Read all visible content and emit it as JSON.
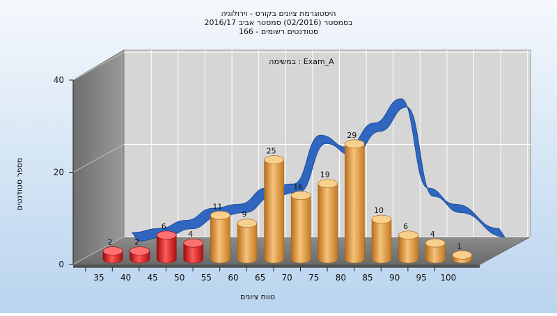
{
  "titles": {
    "line1": "היסטוגרמת ציונים בקורס - וירולוגיה",
    "line2": "בסמסטר  (02/2016)  סמסטר אביב 2016/17",
    "line3": "סטודנטים רשומים - 166"
  },
  "colors": {
    "background_top": "#f4f8fc",
    "background_bottom": "#b9d4ee",
    "fail_bar": "#e21d1d",
    "pass_bar": "#f0aa4a",
    "ribbon": "#2f67c0",
    "plot_wall": "#d6d6d6"
  },
  "chart_data": {
    "type": "bar",
    "series_label": "Exam_A : במשימה",
    "xlabel": "טווח ציונים",
    "ylabel": "מספר סטודנטים",
    "ylim": [
      0,
      40
    ],
    "y_ticks": [
      "0",
      "20",
      "40"
    ],
    "categories": [
      "35",
      "40",
      "45",
      "50",
      "55",
      "60",
      "65",
      "70",
      "75",
      "80",
      "85",
      "90",
      "95",
      "100"
    ],
    "values": [
      2,
      2,
      6,
      4,
      11,
      9,
      25,
      16,
      19,
      29,
      10,
      6,
      4,
      1
    ],
    "bar_types": [
      "fail",
      "fail",
      "fail",
      "fail",
      "pass",
      "pass",
      "pass",
      "pass",
      "pass",
      "pass",
      "pass",
      "pass",
      "pass",
      "pass"
    ],
    "curve_values": [
      1,
      2,
      4,
      7,
      8,
      12,
      13,
      25,
      22,
      28,
      34,
      12,
      8,
      2
    ],
    "grid": true,
    "three_d": true
  }
}
